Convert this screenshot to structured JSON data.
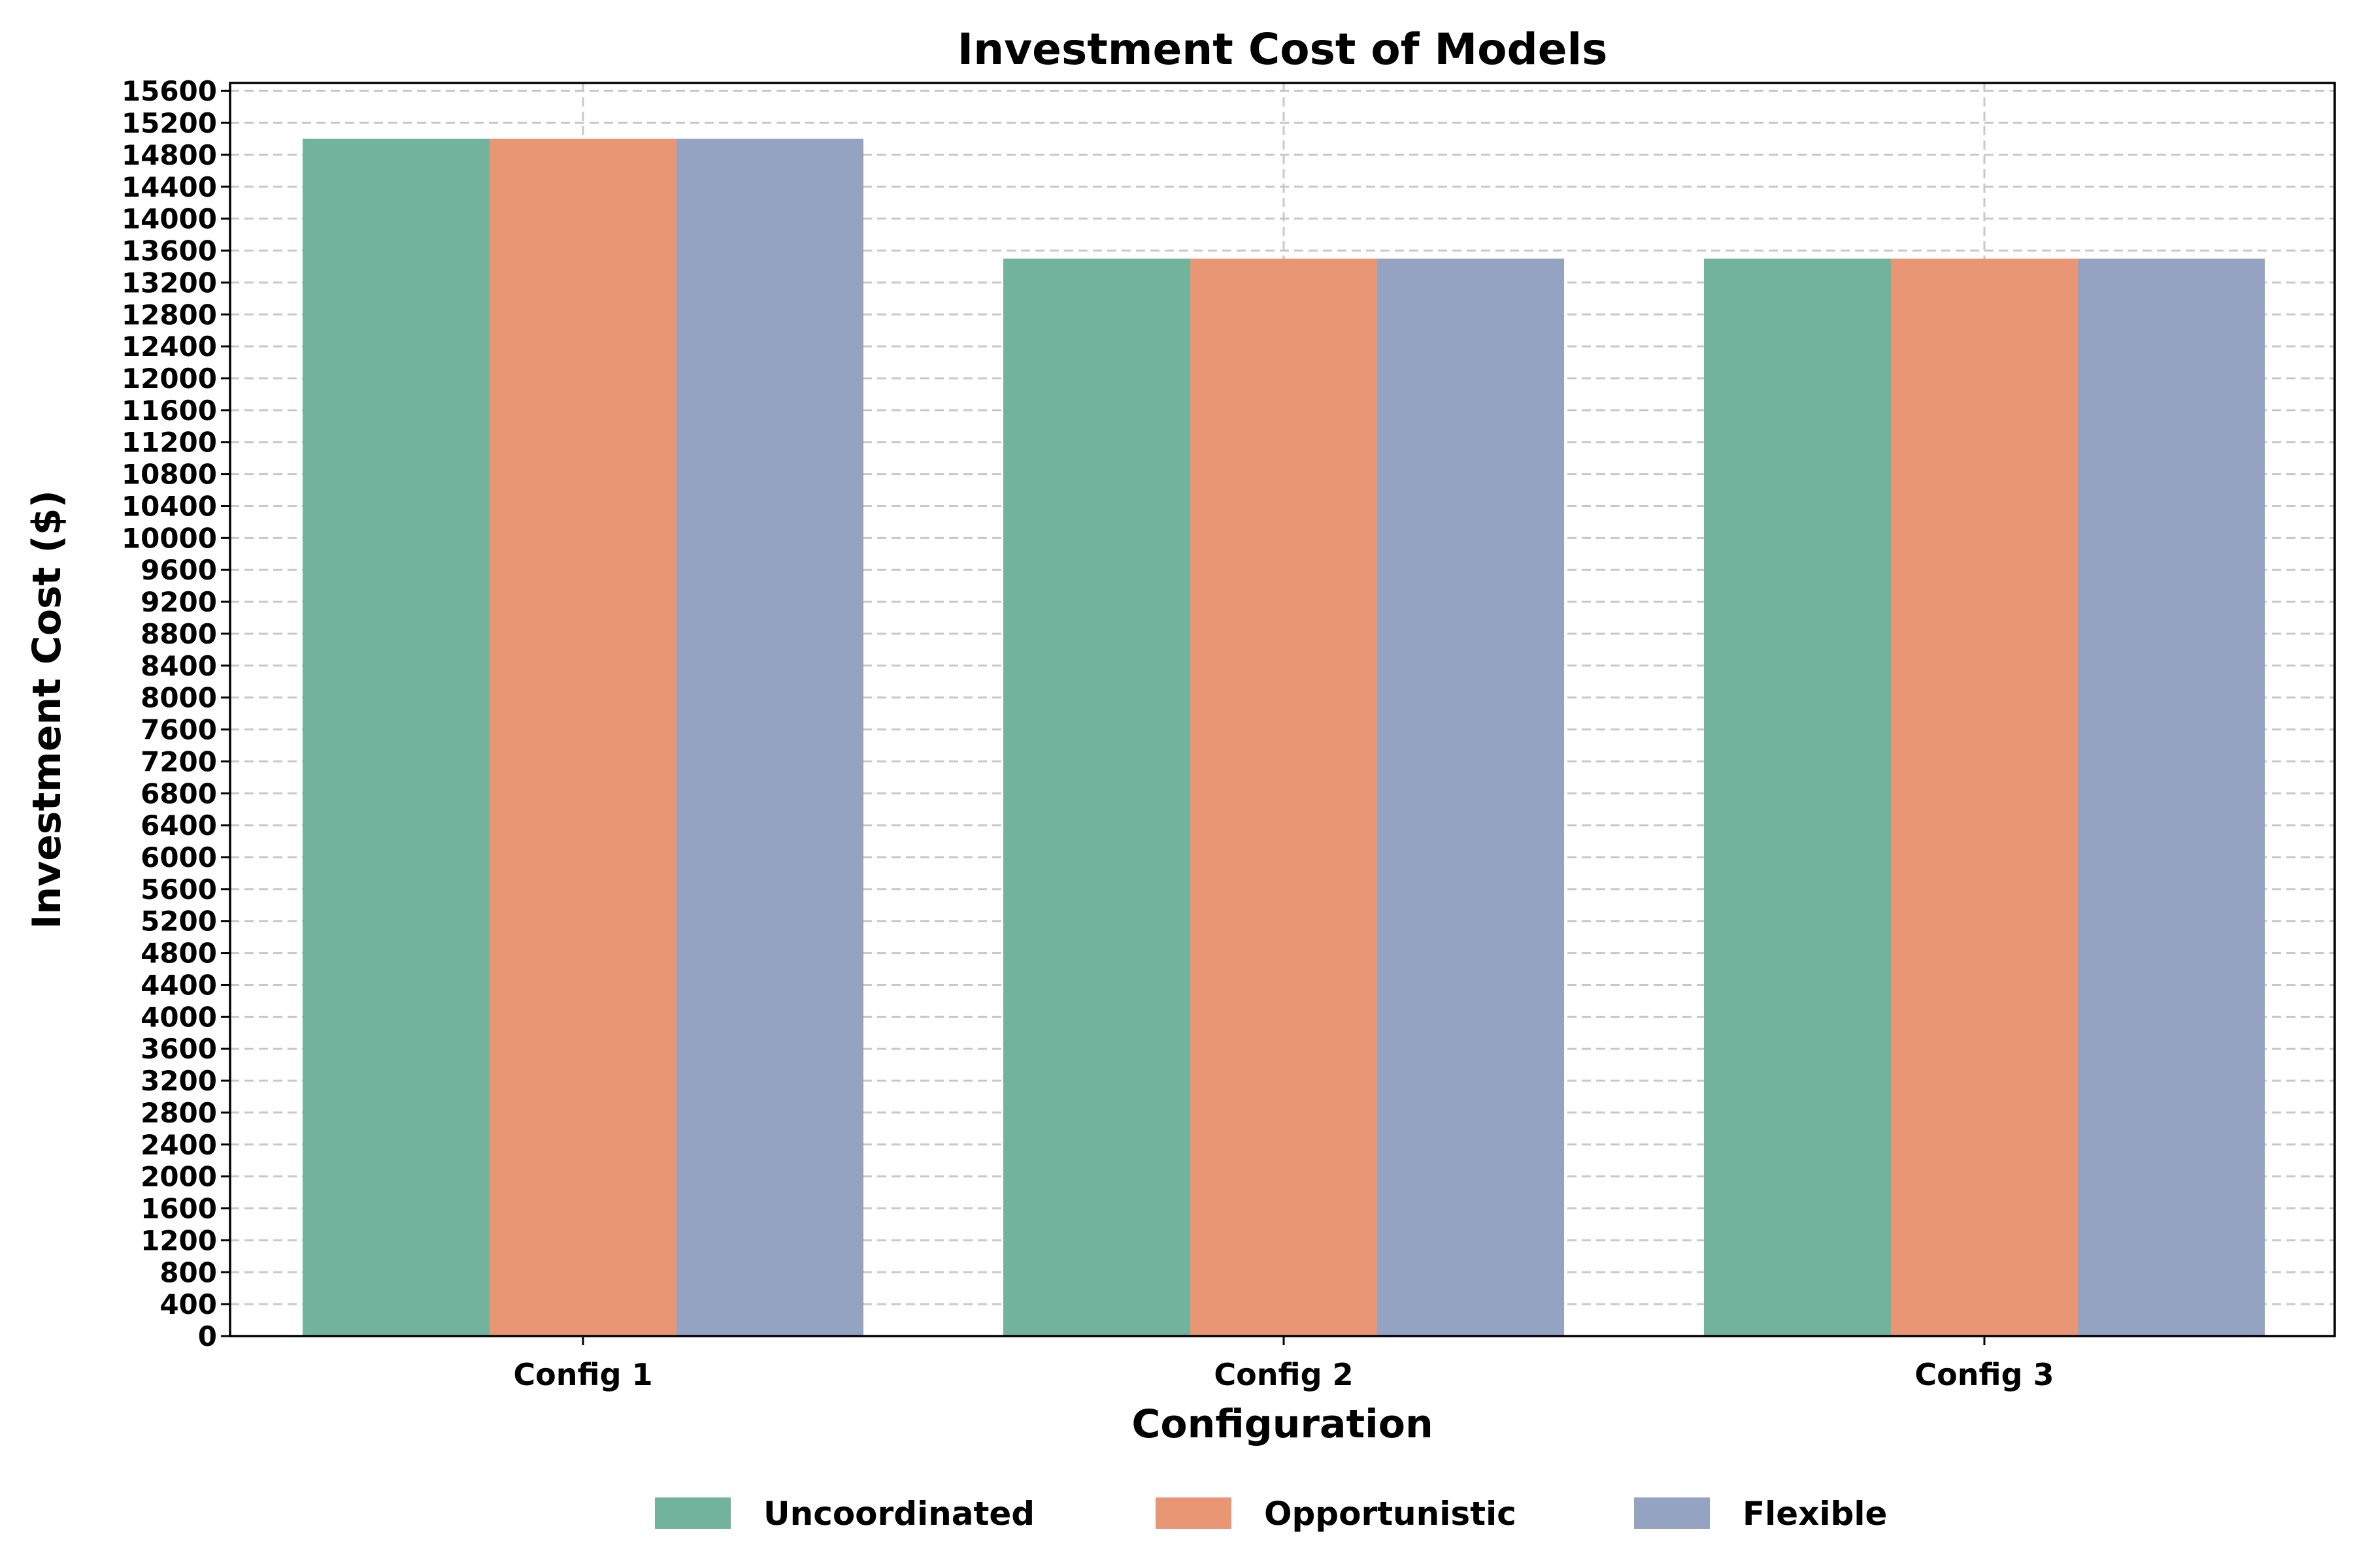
{
  "chart_data": {
    "type": "bar",
    "title": "Investment Cost of Models",
    "xlabel": "Configuration",
    "ylabel": "Investment Cost ($)",
    "categories": [
      "Config 1",
      "Config 2",
      "Config 3"
    ],
    "series": [
      {
        "name": "Uncoordinated",
        "values": [
          15000,
          13500,
          13500
        ],
        "color": "#72b39e"
      },
      {
        "name": "Opportunistic",
        "values": [
          15000,
          13500,
          13500
        ],
        "color": "#e89673"
      },
      {
        "name": "Flexible",
        "values": [
          15000,
          13500,
          13500
        ],
        "color": "#95a3c2"
      }
    ],
    "ylim": [
      0,
      15700
    ],
    "yticks": [
      0,
      400,
      800,
      1200,
      1600,
      2000,
      2400,
      2800,
      3200,
      3600,
      4000,
      4400,
      4800,
      5200,
      5600,
      6000,
      6400,
      6800,
      7200,
      7600,
      8000,
      8400,
      8800,
      9200,
      9600,
      10000,
      10400,
      10800,
      11200,
      11600,
      12000,
      12400,
      12800,
      13200,
      13600,
      14000,
      14400,
      14800,
      15200,
      15600
    ],
    "grid": true,
    "legend_position": "bottom-center"
  }
}
